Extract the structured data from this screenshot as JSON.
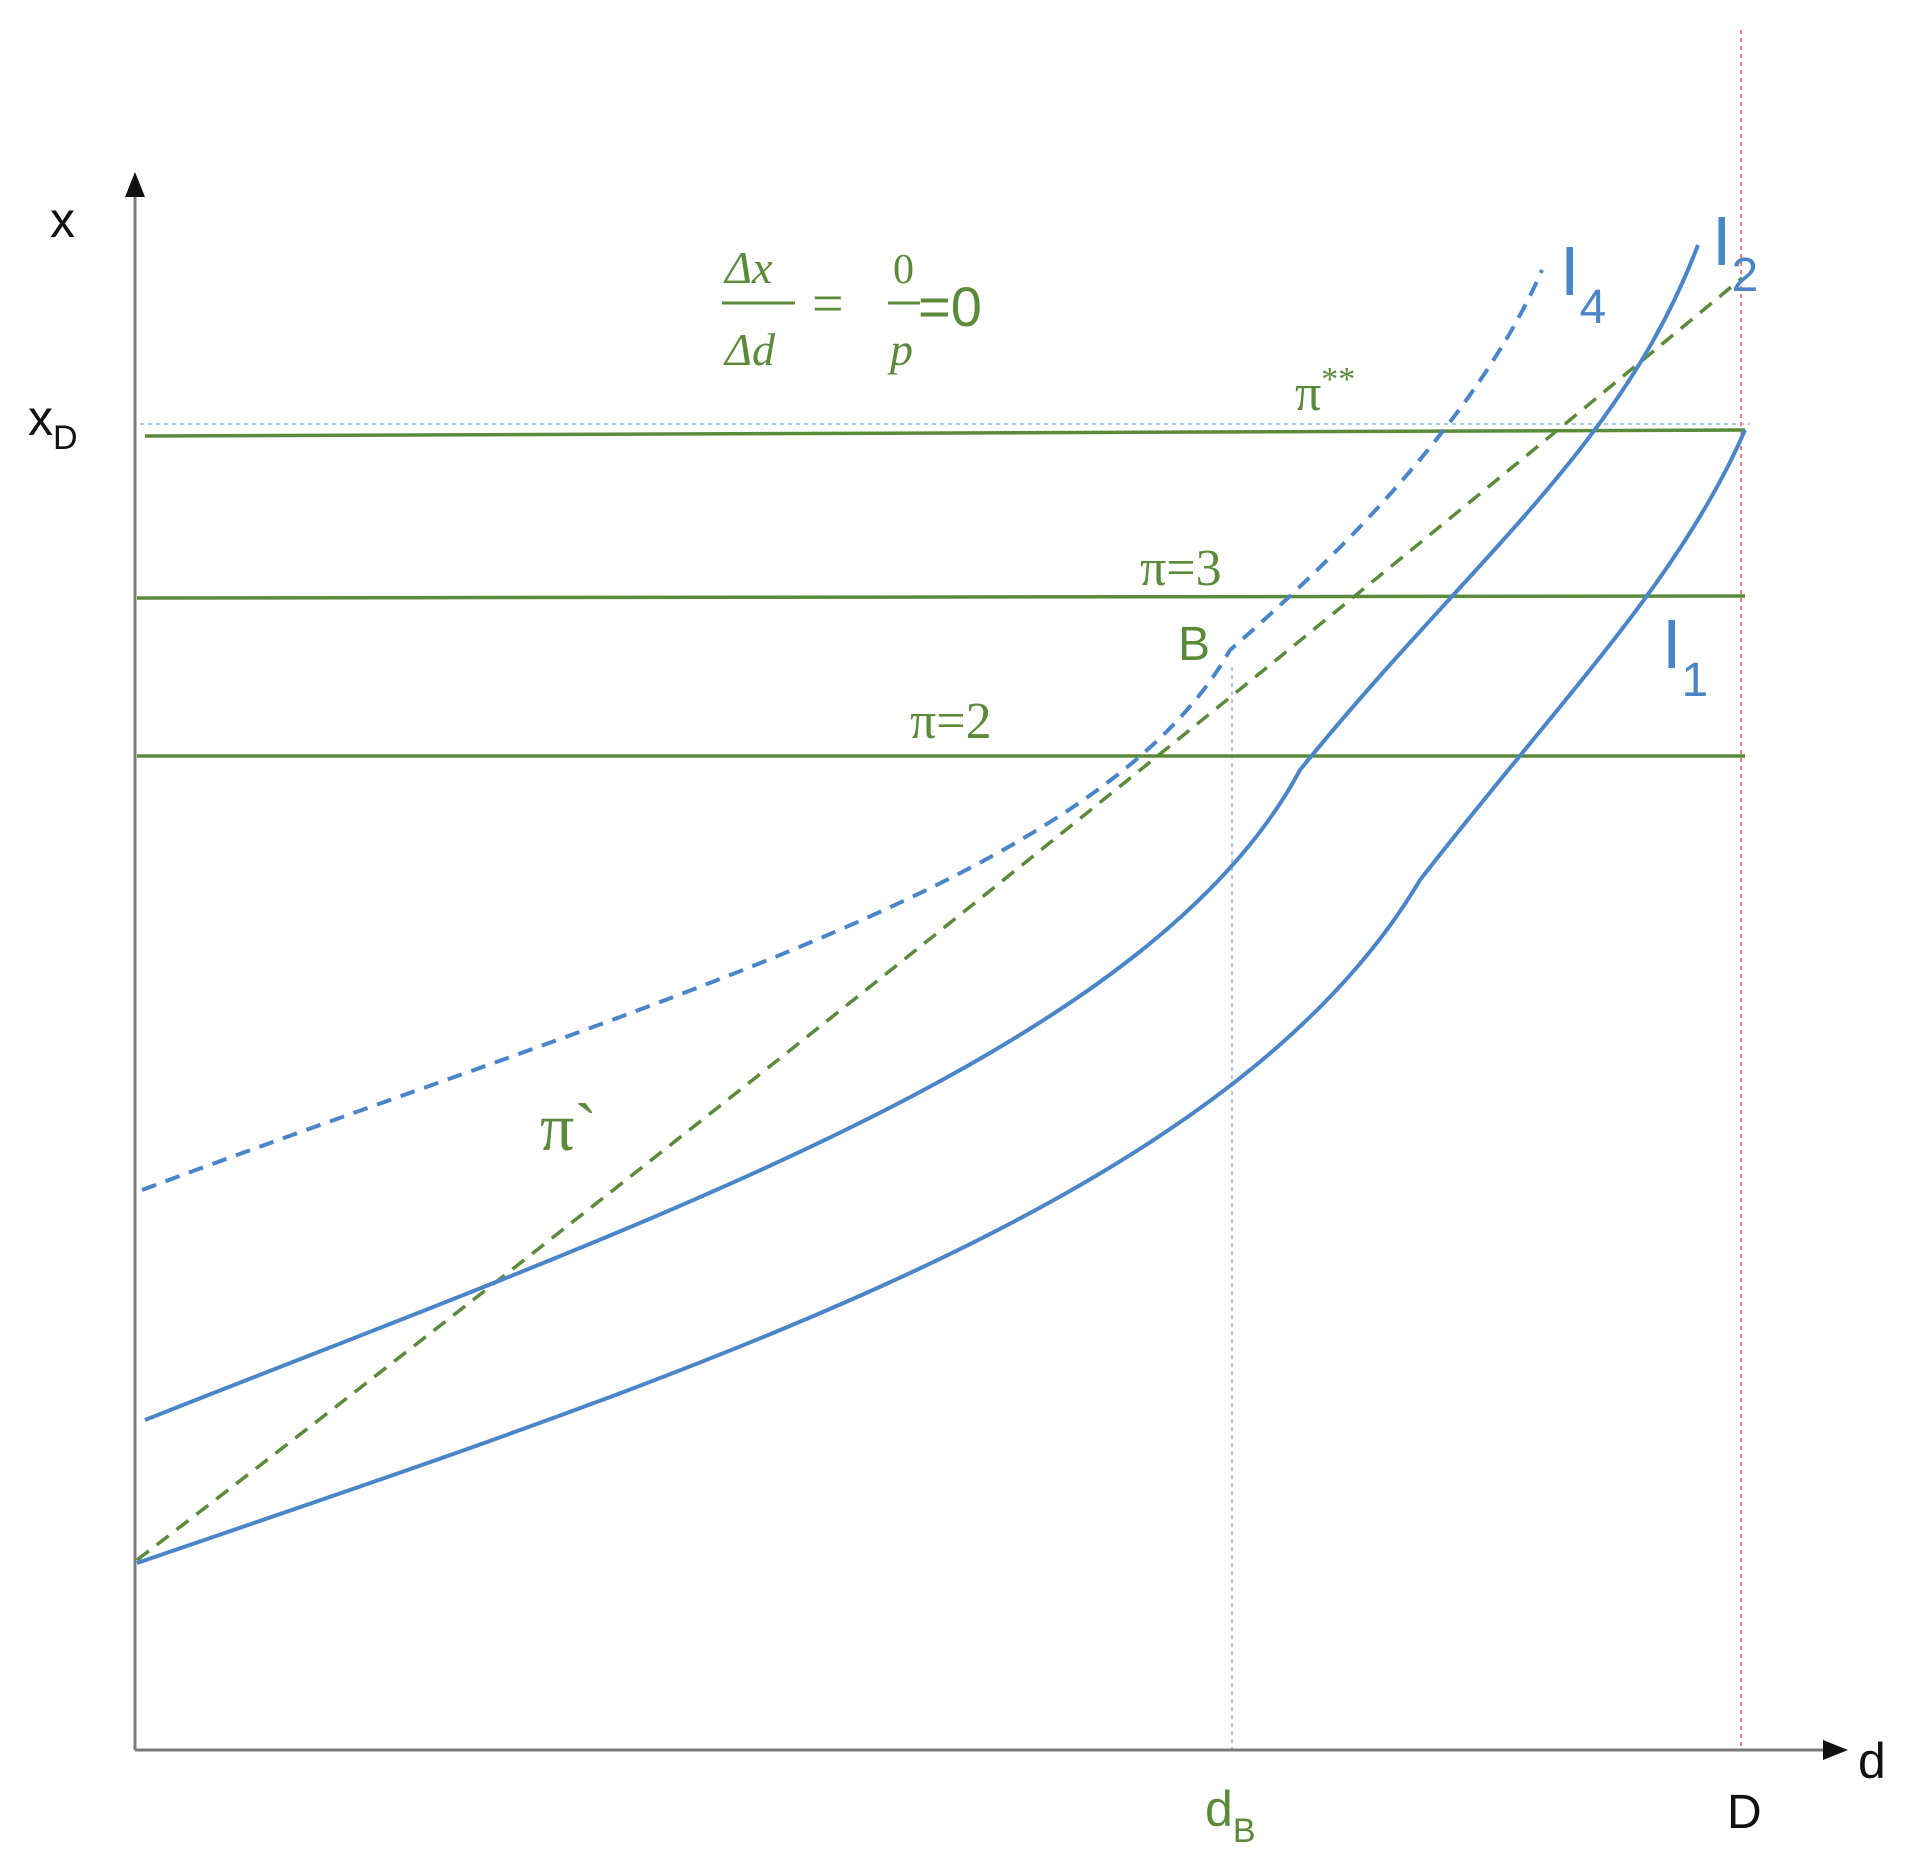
{
  "colors": {
    "axis": "#7a7a7a",
    "blue": "#4a86c7",
    "green": "#5b8a3a",
    "red_dotted": "#f08080",
    "light_blue_dotted": "#a9c8f0",
    "label_dark": "#111111"
  },
  "axes": {
    "y_label": "x",
    "x_label": "d",
    "x_tick_D": "D",
    "x_tick_dB_main": "d",
    "x_tick_dB_sub": "B",
    "y_tick_xD_main": "x",
    "y_tick_xD_sub": "D"
  },
  "equation": {
    "lhs_num": "Δx",
    "lhs_den": "Δd",
    "equals": "=",
    "rhs_num": "0",
    "rhs_den": "p",
    "result": "=0"
  },
  "labels": {
    "pi_star_star": "π",
    "pi_star_star_sup": "**",
    "pi3": "π=3",
    "pi2": "π=2",
    "point_B": "B",
    "pi_prime": "π`",
    "I1_main": "I",
    "I1_sub": "1",
    "I2_main": "I",
    "I2_sub": "2",
    "I4_main": "I",
    "I4_sub": "4"
  }
}
